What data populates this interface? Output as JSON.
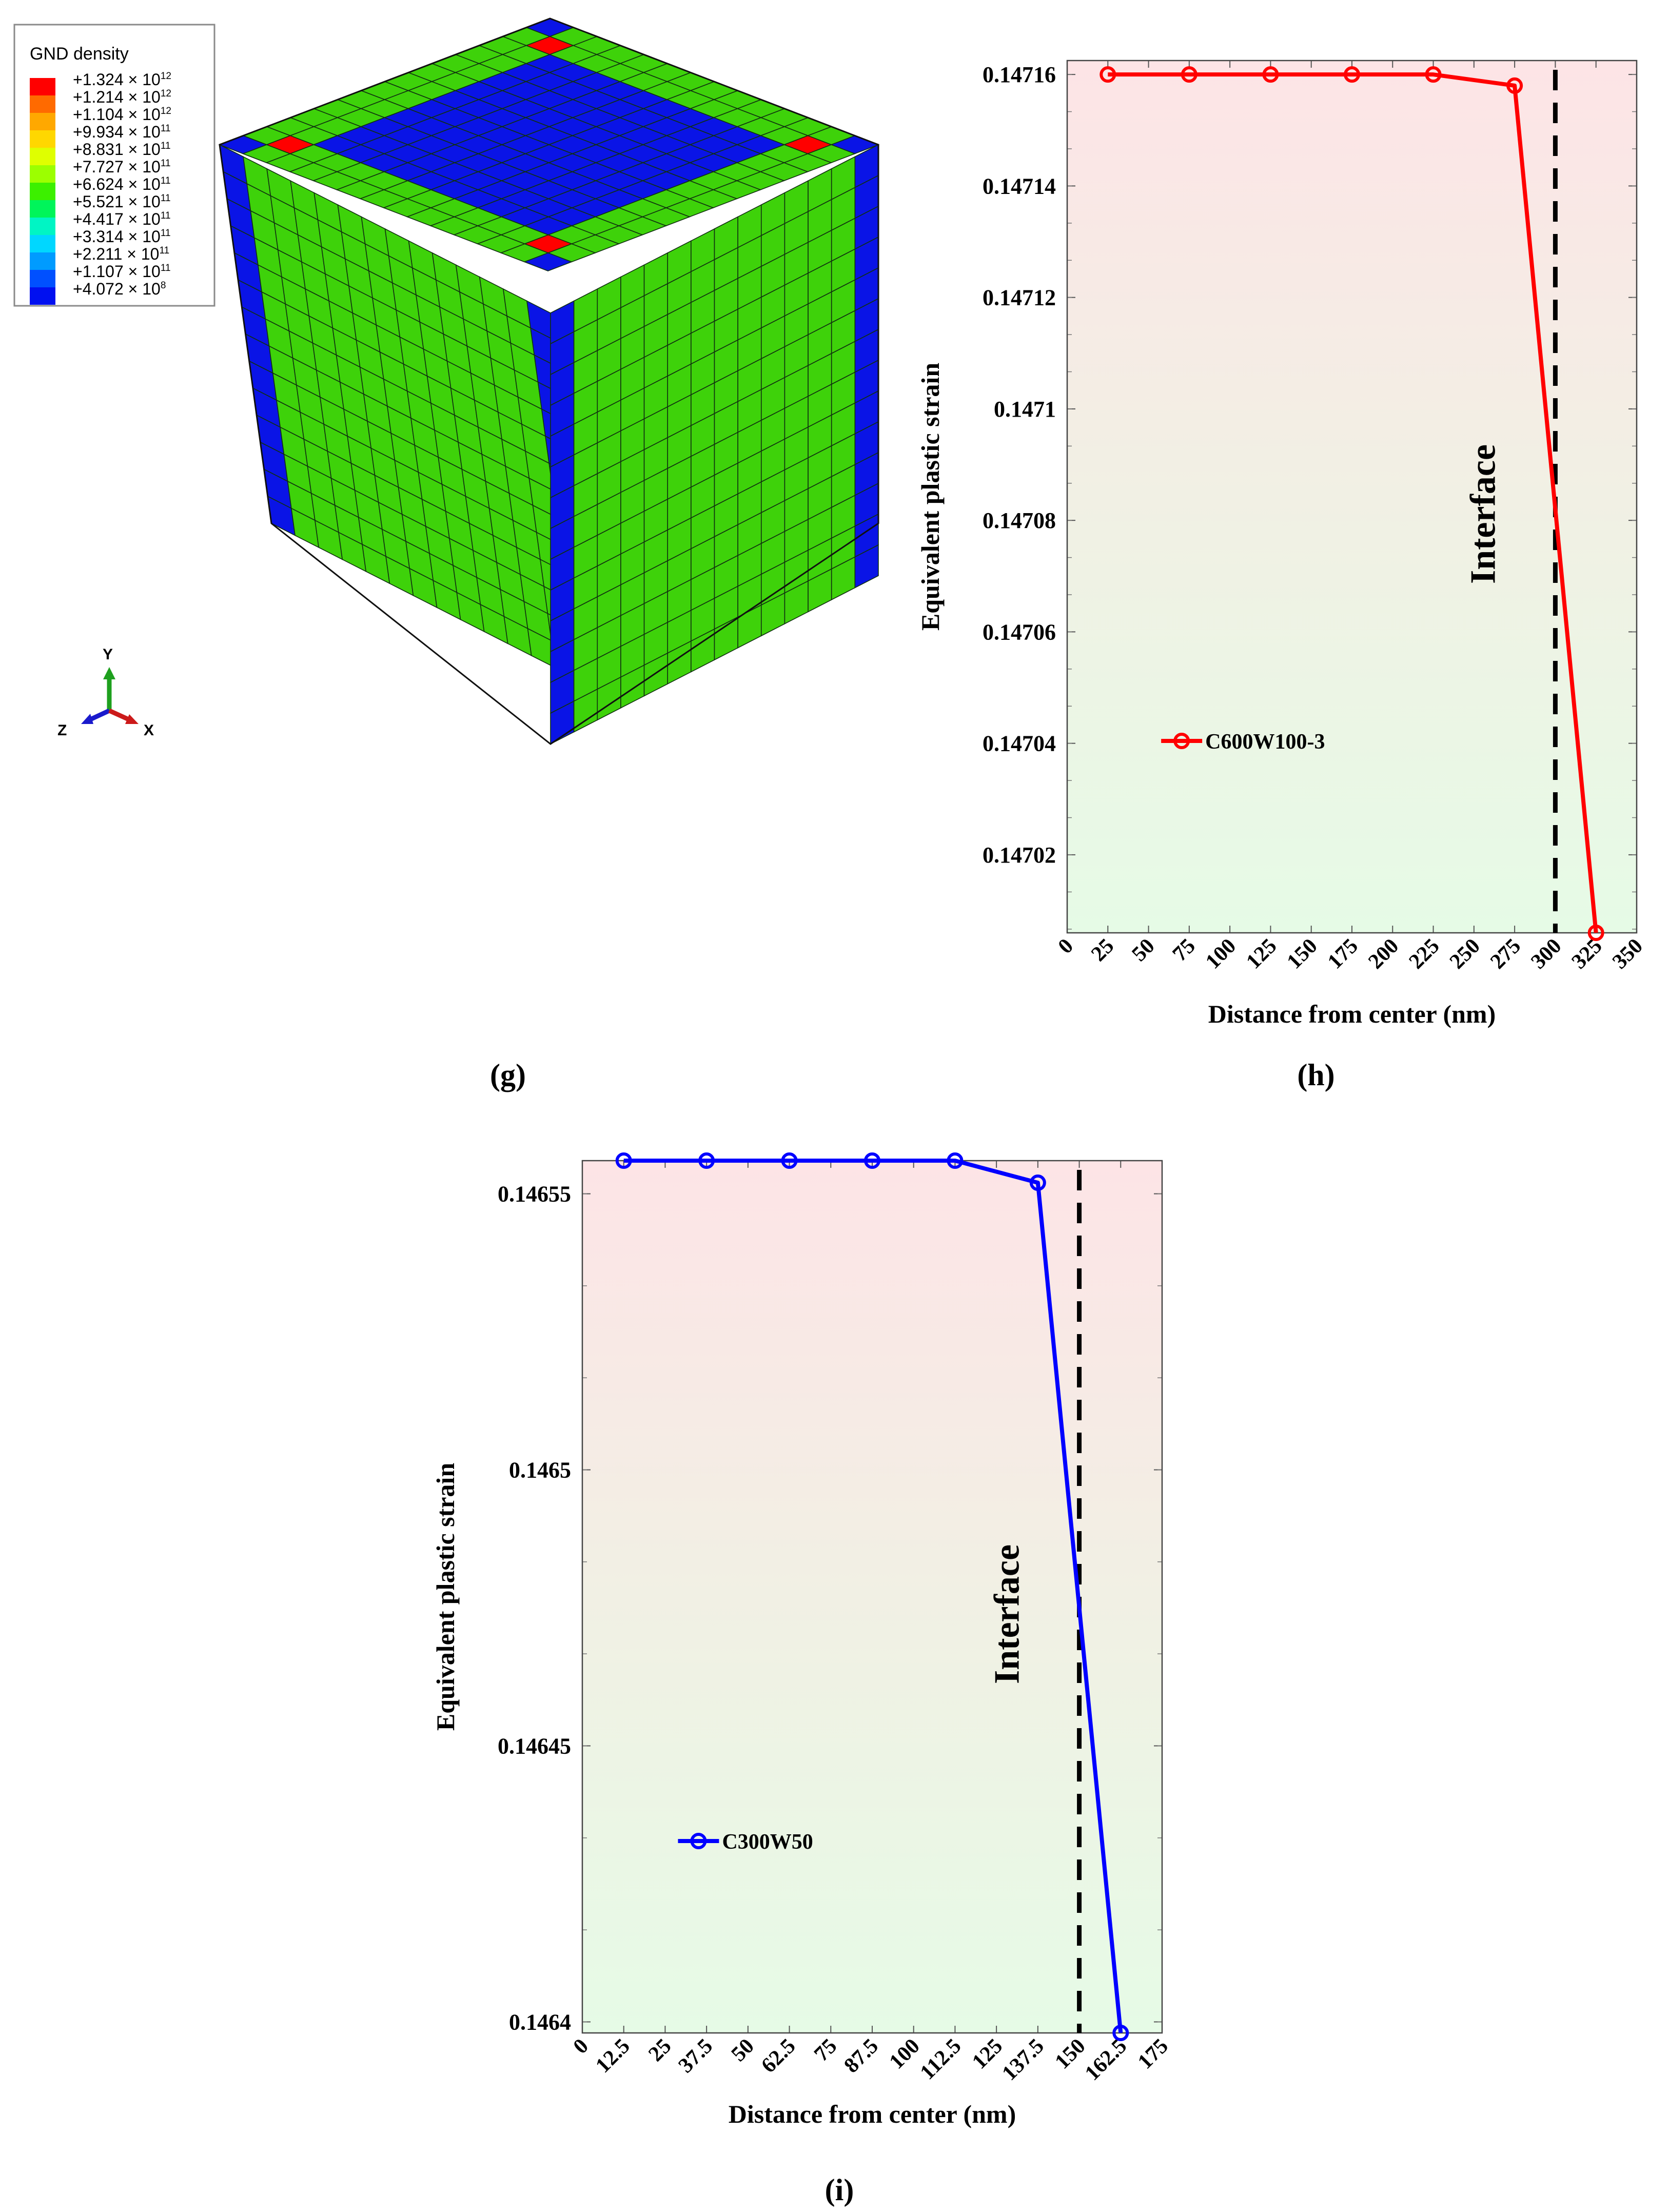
{
  "panels": {
    "g": {
      "label": "(g)"
    },
    "h": {
      "label": "(h)"
    },
    "i": {
      "label": "(i)"
    }
  },
  "fem": {
    "legend_title": "GND density",
    "legend_entries": [
      {
        "mantissa": "+1.324",
        "exp": "12",
        "color": "#ff0000"
      },
      {
        "mantissa": "+1.214",
        "exp": "12",
        "color": "#ff6a00"
      },
      {
        "mantissa": "+1.104",
        "exp": "12",
        "color": "#ffa800"
      },
      {
        "mantissa": "+9.934",
        "exp": "11",
        "color": "#ffd700"
      },
      {
        "mantissa": "+8.831",
        "exp": "11",
        "color": "#dfff00"
      },
      {
        "mantissa": "+7.727",
        "exp": "11",
        "color": "#9cff00"
      },
      {
        "mantissa": "+6.624",
        "exp": "11",
        "color": "#3cf000"
      },
      {
        "mantissa": "+5.521",
        "exp": "11",
        "color": "#00f55a"
      },
      {
        "mantissa": "+4.417",
        "exp": "11",
        "color": "#00f5c4"
      },
      {
        "mantissa": "+3.314",
        "exp": "11",
        "color": "#00d7ff"
      },
      {
        "mantissa": "+2.211",
        "exp": "11",
        "color": "#009bff"
      },
      {
        "mantissa": "+1.107",
        "exp": "11",
        "color": "#0050ff"
      },
      {
        "mantissa": "+4.072",
        "exp": "8",
        "color": "#0010f0"
      }
    ],
    "times_symbol": "× 10",
    "axes": {
      "y": "Y",
      "z": "Z",
      "x": "X"
    },
    "colors": {
      "face_green": "#3ed20a",
      "edge_blue": "#0a14e6",
      "corner_red": "#ff0000",
      "grid_line": "#103010"
    }
  },
  "chart_data": [
    {
      "type": "line",
      "panel": "h",
      "xlabel": "Distance from center (nm)",
      "ylabel": "Equivalent plastic strain",
      "xlim": [
        0,
        350
      ],
      "ylim": [
        0.147006,
        0.1471625
      ],
      "xticks": [
        "0",
        "25",
        "50",
        "75",
        "100",
        "125",
        "150",
        "175",
        "200",
        "225",
        "250",
        "275",
        "300",
        "325",
        "350"
      ],
      "yticks": [
        "0.14702",
        "0.14704",
        "0.14706",
        "0.14708",
        "0.1471",
        "0.14712",
        "0.14714",
        "0.14716"
      ],
      "series": [
        {
          "name": "C600W100-3",
          "color": "#ff0000",
          "x": [
            25,
            75,
            125,
            175,
            225,
            275,
            325
          ],
          "y": [
            0.14716,
            0.14716,
            0.14716,
            0.14716,
            0.14716,
            0.147158,
            0.147006
          ]
        }
      ],
      "interface_x": 300,
      "interface_label": "Interface",
      "legend_position": "lower-left",
      "grid": false
    },
    {
      "type": "line",
      "panel": "i",
      "xlabel": "Distance from center (nm)",
      "ylabel": "Equivalent plastic strain",
      "xlim": [
        0,
        175
      ],
      "ylim": [
        0.146398,
        0.146556
      ],
      "xticks": [
        "0",
        "12.5",
        "25",
        "37.5",
        "50",
        "62.5",
        "75",
        "87.5",
        "100",
        "112.5",
        "125",
        "137.5",
        "150",
        "162.5",
        "175"
      ],
      "yticks": [
        "0.1464",
        "0.14645",
        "0.1465",
        "0.14655"
      ],
      "series": [
        {
          "name": "C300W50",
          "color": "#0000ff",
          "x": [
            12.5,
            37.5,
            62.5,
            87.5,
            112.5,
            137.5,
            162.5
          ],
          "y": [
            0.146556,
            0.146556,
            0.146556,
            0.146556,
            0.146556,
            0.146552,
            0.146398
          ]
        }
      ],
      "interface_x": 150,
      "interface_label": "Interface",
      "legend_position": "lower-left",
      "grid": false
    }
  ]
}
